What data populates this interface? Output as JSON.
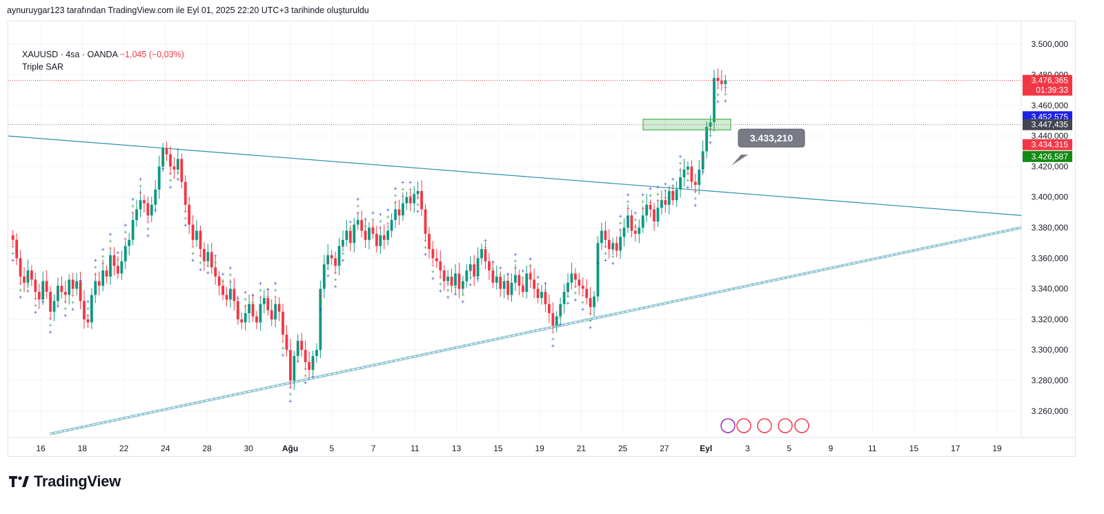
{
  "header": {
    "text": "aynuruygar123 tarafından TradingView.com ile Eyl 01, 2025 22:20 UTC+3 tarihinde oluşturuldu"
  },
  "legend": {
    "symbol": "XAUUSD · 4sa · OANDA",
    "change": "−1,045 (−0,03%)",
    "indicator": "Triple SAR"
  },
  "brand": {
    "name": "TradingView",
    "logo_icon": "tradingview-logo-icon"
  },
  "colors": {
    "up": "#089981",
    "down": "#f23645",
    "trendline": "#2a8fa8",
    "sar_red": "#f23645",
    "sar_green": "#2e9e3a",
    "sar_blue": "#2f3fd6",
    "sar_dark": "#8b1a1a"
  },
  "chart_data": {
    "type": "candlestick",
    "symbol": "XAUUSD",
    "timeframe": "4sa",
    "ylim": [
      3245000,
      3515000
    ],
    "y_ticks": [
      "3.500,000",
      "3.480,000",
      "3.460,000",
      "3.440,000",
      "3.420,000",
      "3.400,000",
      "3.380,000",
      "3.360,000",
      "3.340,000",
      "3.320,000",
      "3.300,000",
      "3.280,000",
      "3.260,000"
    ],
    "y_tick_values": [
      3500000,
      3480000,
      3460000,
      3440000,
      3420000,
      3400000,
      3380000,
      3360000,
      3340000,
      3320000,
      3300000,
      3280000,
      3260000
    ],
    "x_ticks": [
      "16",
      "18",
      "22",
      "24",
      "28",
      "30",
      "Ağu",
      "5",
      "7",
      "11",
      "13",
      "15",
      "19",
      "21",
      "25",
      "27",
      "Eyl",
      "3",
      "5",
      "9",
      "11",
      "15",
      "17",
      "19"
    ],
    "bold_ticks": [
      "Ağu",
      "Eyl"
    ],
    "price_badges": [
      {
        "label": "3.476,365",
        "sub": "01:39:33",
        "value": 3476365,
        "color": "#f23645"
      },
      {
        "label": "3.452,575",
        "value": 3452575,
        "color": "#1e22e6"
      },
      {
        "label": "3.447,435",
        "value": 3447435,
        "color": "#434651"
      },
      {
        "label": "3.434,315",
        "value": 3434315,
        "color": "#f23645"
      },
      {
        "label": "3.426,587",
        "value": 3426587,
        "color": "#138a13"
      }
    ],
    "current_price": 3476365,
    "callout": {
      "label": "3.433,210",
      "value": 3433210
    },
    "series_close": [
      3372000,
      3360000,
      3348000,
      3344000,
      3352000,
      3346000,
      3338000,
      3333000,
      3345000,
      3338000,
      3325000,
      3332000,
      3342000,
      3338000,
      3336000,
      3346000,
      3340000,
      3345000,
      3332000,
      3320000,
      3318000,
      3336000,
      3345000,
      3342000,
      3352000,
      3348000,
      3362000,
      3355000,
      3350000,
      3358000,
      3368000,
      3372000,
      3385000,
      3392000,
      3398000,
      3396000,
      3388000,
      3395000,
      3405000,
      3420000,
      3432000,
      3428000,
      3420000,
      3418000,
      3425000,
      3410000,
      3395000,
      3382000,
      3372000,
      3378000,
      3366000,
      3358000,
      3364000,
      3354000,
      3348000,
      3342000,
      3336000,
      3333000,
      3340000,
      3332000,
      3320000,
      3318000,
      3324000,
      3330000,
      3322000,
      3318000,
      3330000,
      3334000,
      3326000,
      3320000,
      3330000,
      3325000,
      3310000,
      3300000,
      3280000,
      3296000,
      3306000,
      3300000,
      3292000,
      3287000,
      3296000,
      3300000,
      3340000,
      3356000,
      3362000,
      3360000,
      3355000,
      3368000,
      3372000,
      3378000,
      3370000,
      3382000,
      3385000,
      3378000,
      3372000,
      3380000,
      3376000,
      3368000,
      3375000,
      3372000,
      3378000,
      3385000,
      3392000,
      3388000,
      3396000,
      3400000,
      3396000,
      3402000,
      3404000,
      3392000,
      3376000,
      3366000,
      3360000,
      3358000,
      3352000,
      3345000,
      3348000,
      3342000,
      3350000,
      3340000,
      3345000,
      3352000,
      3356000,
      3348000,
      3360000,
      3366000,
      3358000,
      3352000,
      3344000,
      3348000,
      3340000,
      3345000,
      3336000,
      3344000,
      3349000,
      3342000,
      3338000,
      3350000,
      3346000,
      3340000,
      3334000,
      3338000,
      3330000,
      3324000,
      3316000,
      3322000,
      3330000,
      3338000,
      3344000,
      3350000,
      3346000,
      3342000,
      3340000,
      3334000,
      3328000,
      3335000,
      3370000,
      3378000,
      3372000,
      3366000,
      3370000,
      3365000,
      3374000,
      3380000,
      3388000,
      3378000,
      3376000,
      3380000,
      3388000,
      3395000,
      3392000,
      3384000,
      3393000,
      3398000,
      3395000,
      3404000,
      3398000,
      3405000,
      3413000,
      3418000,
      3420000,
      3410000,
      3408000,
      3418000,
      3430000,
      3446000,
      3449000,
      3478000,
      3476000,
      3474000,
      3476365
    ]
  }
}
